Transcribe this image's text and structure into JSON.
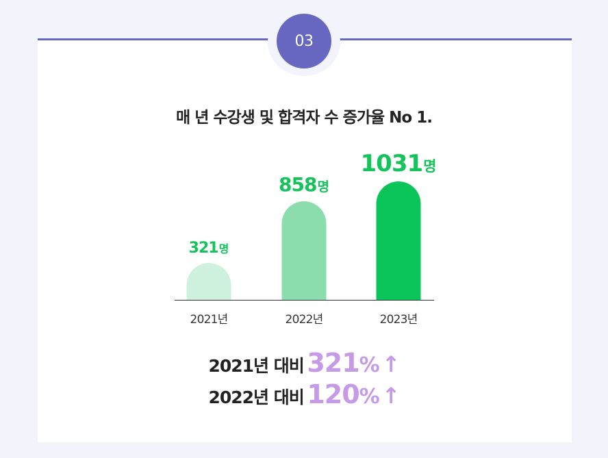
{
  "badge": {
    "number": "03"
  },
  "headline": "매 년 수강생 및 합격자 수 증가율 No 1.",
  "chart_data": {
    "type": "bar",
    "categories": [
      "2021년",
      "2022년",
      "2023년"
    ],
    "values": [
      321,
      858,
      1031
    ],
    "value_labels": [
      "321",
      "858",
      "1031"
    ],
    "unit": "명",
    "bar_colors": [
      "#cdf1dd",
      "#8cddad",
      "#0bc55b"
    ],
    "ylim": [
      0,
      1031
    ],
    "grid": false,
    "legend": "none"
  },
  "summary": [
    {
      "label": "2021년 대비",
      "value": "321",
      "sign": "%",
      "arrow": "↑"
    },
    {
      "label": "2022년 대비",
      "value": "120",
      "sign": "%",
      "arrow": "↑"
    }
  ],
  "colors": {
    "accent": "#6767c2",
    "green": "#14c45a",
    "lavender": "#c69ae6",
    "background": "#f3f3fb"
  }
}
